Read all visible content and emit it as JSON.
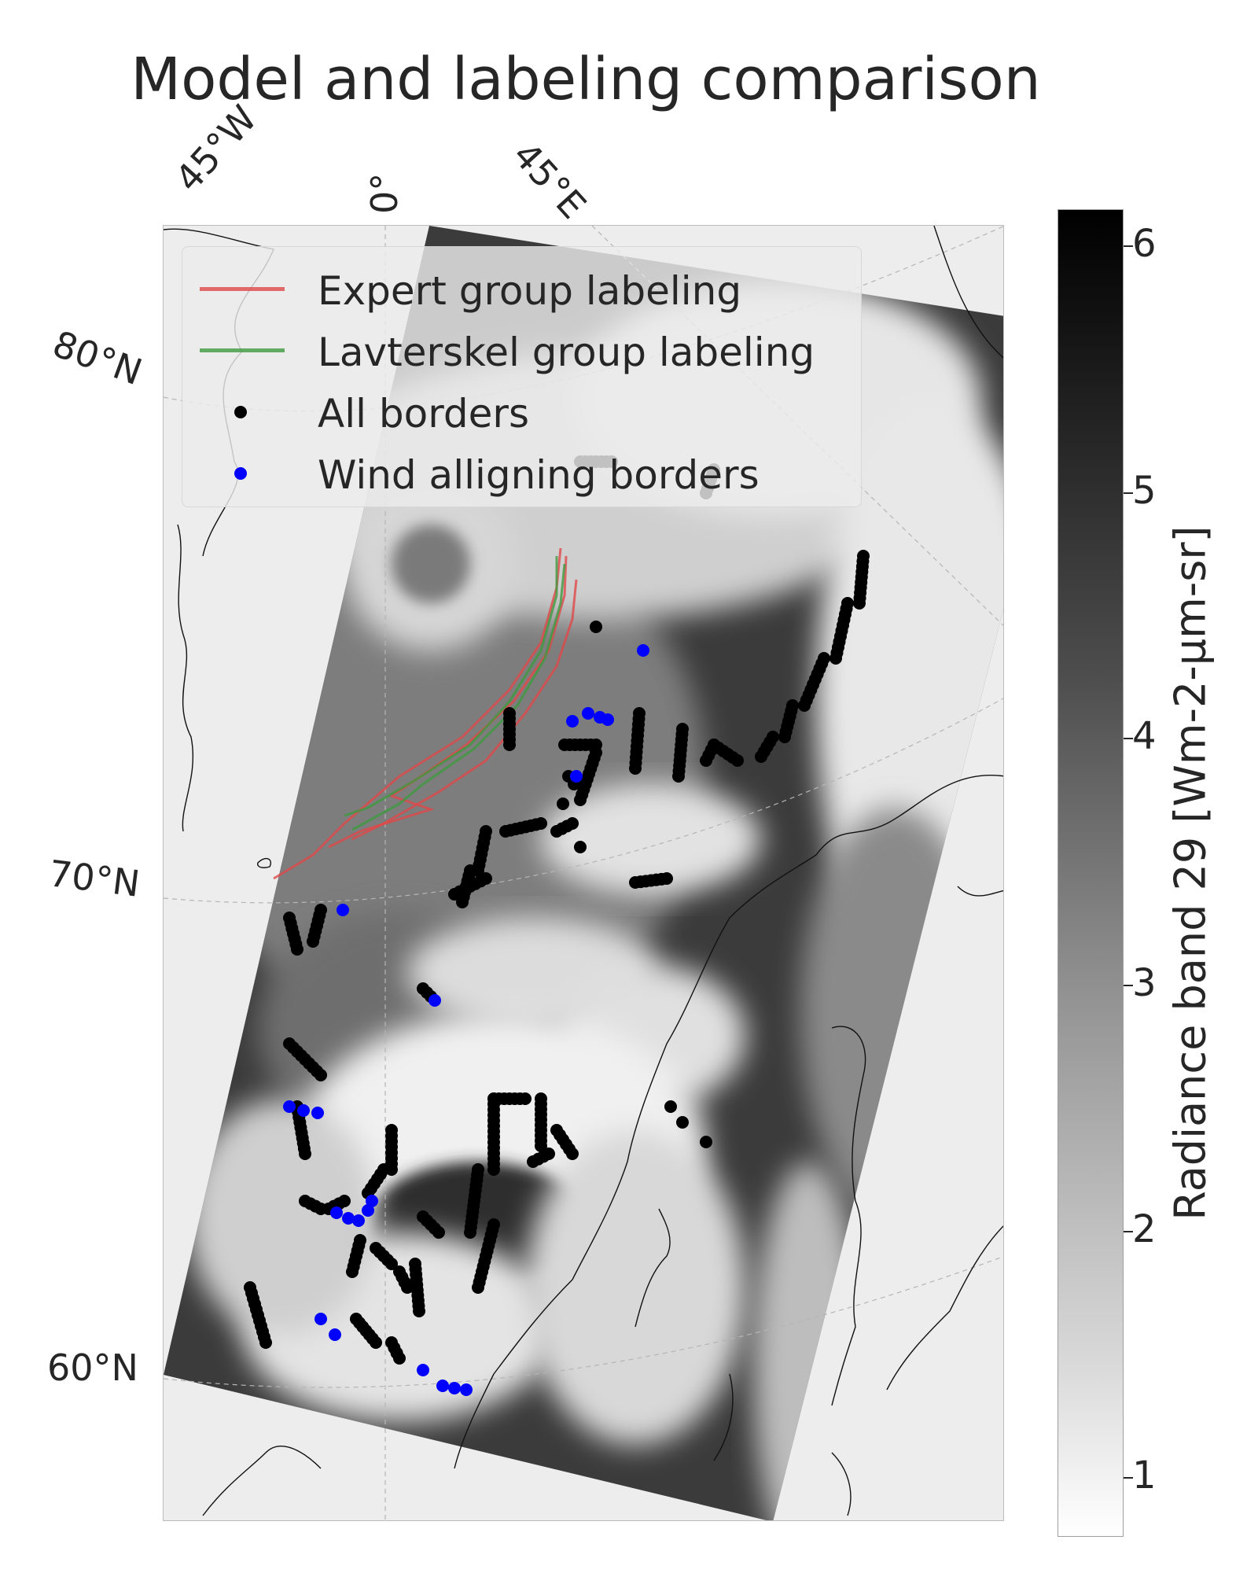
{
  "title": "Model and labeling comparison",
  "map": {
    "longitude_labels": [
      "45°W",
      "0°",
      "45°E"
    ],
    "latitude_labels": [
      "80°N",
      "70°N",
      "60°N"
    ],
    "land_color": "#ededed",
    "swath_description_colors": {
      "clear_sea": "#3a3a3a",
      "cloud": "#f0f0f0"
    }
  },
  "legend": {
    "entries": [
      {
        "label": "Expert group labeling",
        "type": "line",
        "color": "#e0494a"
      },
      {
        "label": "Lavterskel group labeling",
        "type": "line",
        "color": "#3f9a3f"
      },
      {
        "label": "All borders",
        "type": "marker",
        "color": "#000000"
      },
      {
        "label": "Wind alligning borders",
        "type": "marker",
        "color": "#0000ff"
      }
    ]
  },
  "colorbar": {
    "label": "Radiance band 29 [Wm-2-μm-sr]",
    "ticks": [
      "6",
      "5",
      "4",
      "3",
      "2",
      "1"
    ],
    "range": [
      0.7,
      6.15
    ],
    "colormap": "gray_r"
  }
}
